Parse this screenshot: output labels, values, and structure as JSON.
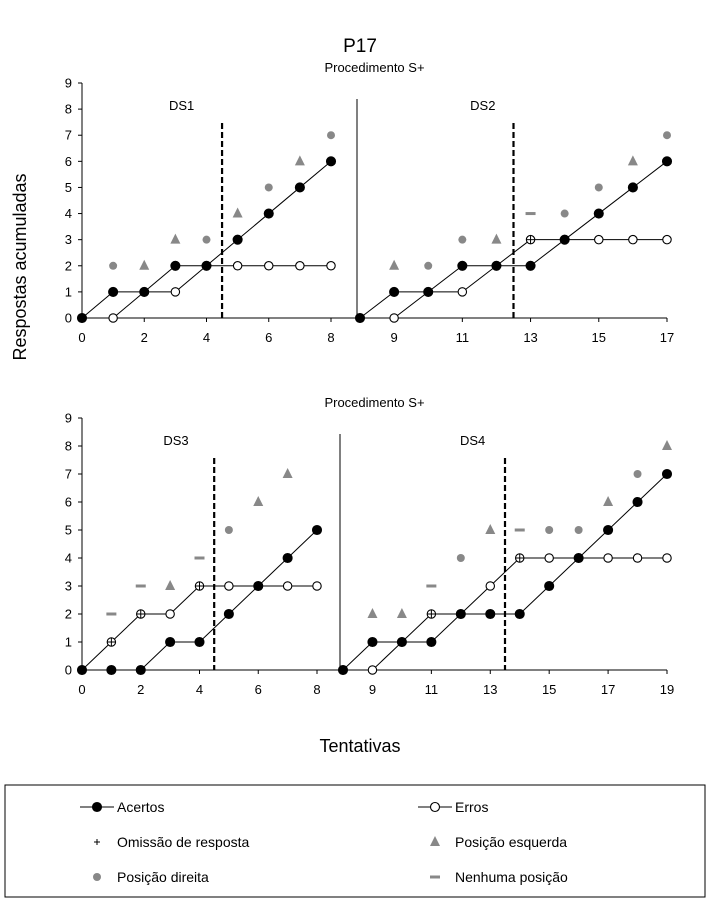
{
  "figure": {
    "title": "P17",
    "ylabel": "Respostas acumuladas",
    "xlabel": "Tentativas"
  },
  "legend": {
    "items": [
      {
        "key": "acertos",
        "label": "Acertos",
        "marker": "filled-circle-line"
      },
      {
        "key": "erros",
        "label": "Erros",
        "marker": "open-circle-line"
      },
      {
        "key": "omissao",
        "label": "Omissão de resposta",
        "marker": "plus"
      },
      {
        "key": "esquerda",
        "label": "Posição esquerda",
        "marker": "triangle"
      },
      {
        "key": "direita",
        "label": "Posição direita",
        "marker": "grey-circle"
      },
      {
        "key": "nenhuma",
        "label": "Nenhuma posição",
        "marker": "dash"
      }
    ]
  },
  "colors": {
    "marker_grey": "#888888",
    "line": "#000000"
  },
  "chart_data": [
    {
      "type": "line",
      "title": "Procedimento S+",
      "ylim": [
        0,
        9
      ],
      "yticks": [
        0,
        1,
        2,
        3,
        4,
        5,
        6,
        7,
        8,
        9
      ],
      "segments": [
        {
          "label": "DS1",
          "xlim": [
            0,
            8
          ],
          "xticks": [
            0,
            2,
            4,
            6,
            8
          ],
          "criterion_x": 4.5,
          "acertos": [
            [
              0,
              0
            ],
            [
              1,
              1
            ],
            [
              2,
              1
            ],
            [
              3,
              2
            ],
            [
              4,
              2
            ],
            [
              5,
              3
            ],
            [
              6,
              4
            ],
            [
              7,
              5
            ],
            [
              8,
              6
            ]
          ],
          "erros": [
            [
              0,
              0
            ],
            [
              1,
              0
            ],
            [
              2,
              1
            ],
            [
              3,
              1
            ],
            [
              4,
              2
            ],
            [
              5,
              2
            ],
            [
              6,
              2
            ],
            [
              7,
              2
            ],
            [
              8,
              2
            ]
          ],
          "omissao": [],
          "esquerda": [
            [
              2,
              2
            ],
            [
              3,
              3
            ],
            [
              5,
              4
            ],
            [
              7,
              6
            ]
          ],
          "direita": [
            [
              1,
              2
            ],
            [
              4,
              3
            ],
            [
              6,
              5
            ],
            [
              8,
              7
            ]
          ],
          "nenhuma": []
        },
        {
          "label": "DS2",
          "xlim": [
            8,
            17
          ],
          "xticks": [
            9,
            11,
            13,
            15,
            17
          ],
          "criterion_x": 12.5,
          "acertos": [
            [
              8,
              0
            ],
            [
              9,
              1
            ],
            [
              10,
              1
            ],
            [
              11,
              2
            ],
            [
              12,
              2
            ],
            [
              13,
              2
            ],
            [
              14,
              3
            ],
            [
              15,
              4
            ],
            [
              16,
              5
            ],
            [
              17,
              6
            ]
          ],
          "erros": [
            [
              8,
              0
            ],
            [
              9,
              0
            ],
            [
              10,
              1
            ],
            [
              11,
              1
            ],
            [
              12,
              2
            ],
            [
              13,
              3
            ],
            [
              14,
              3
            ],
            [
              15,
              3
            ],
            [
              16,
              3
            ],
            [
              17,
              3
            ]
          ],
          "omissao": [
            [
              13,
              3
            ]
          ],
          "esquerda": [
            [
              9,
              2
            ],
            [
              12,
              3
            ],
            [
              16,
              6
            ]
          ],
          "direita": [
            [
              10,
              2
            ],
            [
              11,
              3
            ],
            [
              14,
              4
            ],
            [
              15,
              5
            ],
            [
              17,
              7
            ]
          ],
          "nenhuma": [
            [
              13,
              4
            ]
          ]
        }
      ]
    },
    {
      "type": "line",
      "title": "Procedimento S+",
      "ylim": [
        0,
        9
      ],
      "yticks": [
        0,
        1,
        2,
        3,
        4,
        5,
        6,
        7,
        8,
        9
      ],
      "segments": [
        {
          "label": "DS3",
          "xlim": [
            0,
            8
          ],
          "xticks": [
            0,
            2,
            4,
            6,
            8
          ],
          "criterion_x": 4.5,
          "acertos": [
            [
              0,
              0
            ],
            [
              1,
              0
            ],
            [
              2,
              0
            ],
            [
              3,
              1
            ],
            [
              4,
              1
            ],
            [
              5,
              2
            ],
            [
              6,
              3
            ],
            [
              7,
              4
            ],
            [
              8,
              5
            ]
          ],
          "erros": [
            [
              0,
              0
            ],
            [
              1,
              1
            ],
            [
              2,
              2
            ],
            [
              3,
              2
            ],
            [
              4,
              3
            ],
            [
              5,
              3
            ],
            [
              6,
              3
            ],
            [
              7,
              3
            ],
            [
              8,
              3
            ]
          ],
          "omissao": [
            [
              1,
              1
            ],
            [
              2,
              2
            ],
            [
              4,
              3
            ]
          ],
          "esquerda": [
            [
              3,
              3
            ],
            [
              6,
              6
            ],
            [
              7,
              7
            ]
          ],
          "direita": [
            [
              5,
              5
            ]
          ],
          "nenhuma": [
            [
              1,
              2
            ],
            [
              2,
              3
            ],
            [
              4,
              4
            ]
          ]
        },
        {
          "label": "DS4",
          "xlim": [
            8,
            19
          ],
          "xticks": [
            9,
            11,
            13,
            15,
            17,
            19
          ],
          "criterion_x": 13.5,
          "acertos": [
            [
              8,
              0
            ],
            [
              9,
              1
            ],
            [
              10,
              1
            ],
            [
              11,
              1
            ],
            [
              12,
              2
            ],
            [
              13,
              2
            ],
            [
              14,
              2
            ],
            [
              15,
              3
            ],
            [
              16,
              4
            ],
            [
              17,
              5
            ],
            [
              18,
              6
            ],
            [
              19,
              7
            ]
          ],
          "erros": [
            [
              8,
              0
            ],
            [
              9,
              0
            ],
            [
              10,
              1
            ],
            [
              11,
              2
            ],
            [
              12,
              2
            ],
            [
              13,
              3
            ],
            [
              14,
              4
            ],
            [
              15,
              4
            ],
            [
              16,
              4
            ],
            [
              17,
              4
            ],
            [
              18,
              4
            ],
            [
              19,
              4
            ]
          ],
          "omissao": [
            [
              11,
              2
            ],
            [
              14,
              4
            ]
          ],
          "esquerda": [
            [
              9,
              2
            ],
            [
              10,
              2
            ],
            [
              13,
              5
            ],
            [
              17,
              6
            ],
            [
              19,
              8
            ]
          ],
          "direita": [
            [
              12,
              4
            ],
            [
              15,
              5
            ],
            [
              16,
              5
            ],
            [
              18,
              7
            ]
          ],
          "nenhuma": [
            [
              11,
              3
            ],
            [
              14,
              5
            ]
          ]
        }
      ]
    }
  ]
}
